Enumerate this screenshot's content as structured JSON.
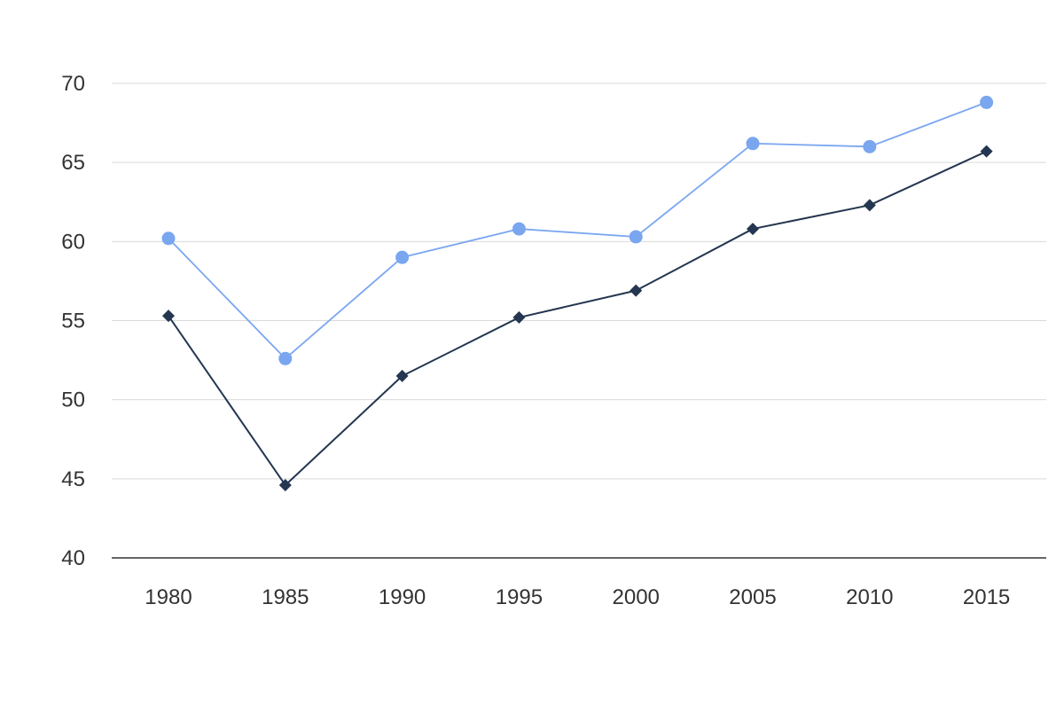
{
  "chart_data": {
    "type": "line",
    "x": [
      "1980",
      "1985",
      "1990",
      "1995",
      "2000",
      "2005",
      "2010",
      "2015"
    ],
    "ylim": [
      40,
      70
    ],
    "yticks": [
      "40",
      "45",
      "50",
      "55",
      "60",
      "65",
      "70"
    ],
    "grid": true,
    "title": "",
    "xlabel": "",
    "ylabel": "",
    "series": [
      {
        "values": [
          60.2,
          52.6,
          59.0,
          60.8,
          60.3,
          66.2,
          66.0,
          68.8
        ],
        "color": "#7aa6f0",
        "marker": "circle"
      },
      {
        "values": [
          55.3,
          44.6,
          51.5,
          55.2,
          56.9,
          60.8,
          62.3,
          65.7
        ],
        "color": "#243650",
        "marker": "diamond"
      }
    ]
  }
}
